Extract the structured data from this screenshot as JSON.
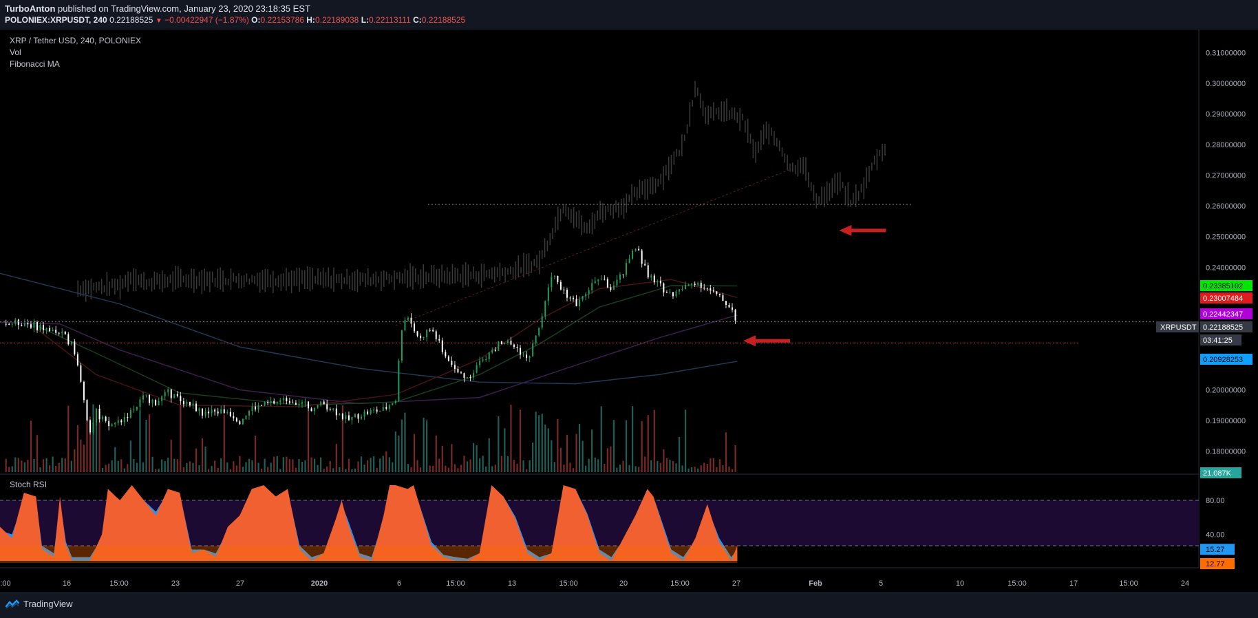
{
  "header": {
    "author": "TurboAnton",
    "published": "published on TradingView.com, January 23, 2020 23:18:35 EST",
    "symbol": "POLONIEX:XRPUSDT, 240",
    "last": "0.22188525",
    "change": "−0.00422947 (−1.87%)",
    "o_label": "O:",
    "o": "0.22153786",
    "h_label": "H:",
    "h": "0.22189038",
    "l_label": "L:",
    "l": "0.22113111",
    "c_label": "C:",
    "c": "0.22188525"
  },
  "legend": {
    "title": "XRP / Tether USD, 240, POLONIEX",
    "vol": "Vol",
    "fib": "Fibonacci MA"
  },
  "stoch": {
    "title": "Stoch RSI",
    "levels": [
      "80.00",
      "40.00"
    ],
    "value_blue": "15.27",
    "value_orange": "12.77"
  },
  "footer": {
    "brand": "TradingView"
  },
  "chart_data": {
    "type": "candlestick",
    "symbol": "XRPUSDT",
    "y_ticks": [
      "0.31000000",
      "0.30000000",
      "0.29000000",
      "0.28000000",
      "0.27000000",
      "0.26000000",
      "0.25000000",
      "0.24000000",
      "0.20000000",
      "0.19000000",
      "0.18000000"
    ],
    "ylim": [
      0.1725,
      0.3175
    ],
    "x_ticks": [
      ":00",
      "16",
      "15:00",
      "23",
      "27",
      "2020",
      "6",
      "15:00",
      "13",
      "15:00",
      "20",
      "15:00",
      "27",
      "Feb",
      "5",
      "10",
      "15:00",
      "17",
      "15:00",
      "24"
    ],
    "price_labels": [
      {
        "value": "0.23385102",
        "color": "#00e600",
        "text_color": "#000"
      },
      {
        "value": "0.23007484",
        "color": "#e01b1b",
        "text_color": "#fff"
      },
      {
        "value": "0.22442347",
        "color": "#b000d8",
        "text_color": "#fff"
      },
      {
        "value": "0.22188525",
        "color": "#363a45",
        "text_color": "#fff",
        "name": "XRPUSDT"
      },
      {
        "value": "03:41:25",
        "color": "#363a45",
        "text_color": "#fff"
      },
      {
        "value": "0.20928253",
        "color": "#0fa0ff",
        "text_color": "#000"
      },
      {
        "value": "21.087K",
        "color": "#26a69a",
        "text_color": "#fff"
      }
    ],
    "dotted_lines": [
      {
        "y": 0.2605,
        "x_start": 0.357,
        "x_end": 0.76,
        "color": "#888"
      },
      {
        "y": 0.2222,
        "x_start": 0.0,
        "x_end": 0.97,
        "color": "#777"
      },
      {
        "y": 0.2153,
        "x_start": 0.0,
        "x_end": 0.9,
        "color": "#c03030"
      }
    ],
    "price_path": [
      [
        0,
        0.2215
      ],
      [
        0.02,
        0.222
      ],
      [
        0.04,
        0.2195
      ],
      [
        0.05,
        0.2185
      ],
      [
        0.06,
        0.215
      ],
      [
        0.065,
        0.207
      ],
      [
        0.07,
        0.197
      ],
      [
        0.075,
        0.186
      ],
      [
        0.08,
        0.193
      ],
      [
        0.09,
        0.188
      ],
      [
        0.1,
        0.19
      ],
      [
        0.11,
        0.193
      ],
      [
        0.12,
        0.1975
      ],
      [
        0.13,
        0.196
      ],
      [
        0.14,
        0.199
      ],
      [
        0.15,
        0.197
      ],
      [
        0.16,
        0.195
      ],
      [
        0.17,
        0.192
      ],
      [
        0.18,
        0.193
      ],
      [
        0.19,
        0.193
      ],
      [
        0.2,
        0.19
      ],
      [
        0.21,
        0.194
      ],
      [
        0.22,
        0.195
      ],
      [
        0.23,
        0.196
      ],
      [
        0.24,
        0.197
      ],
      [
        0.25,
        0.196
      ],
      [
        0.26,
        0.194
      ],
      [
        0.27,
        0.1955
      ],
      [
        0.28,
        0.193
      ],
      [
        0.29,
        0.19
      ],
      [
        0.3,
        0.192
      ],
      [
        0.31,
        0.193
      ],
      [
        0.32,
        0.1935
      ],
      [
        0.33,
        0.197
      ],
      [
        0.335,
        0.22
      ],
      [
        0.34,
        0.225
      ],
      [
        0.345,
        0.218
      ],
      [
        0.35,
        0.217
      ],
      [
        0.36,
        0.22
      ],
      [
        0.37,
        0.212
      ],
      [
        0.38,
        0.206
      ],
      [
        0.39,
        0.204
      ],
      [
        0.4,
        0.209
      ],
      [
        0.41,
        0.213
      ],
      [
        0.42,
        0.216
      ],
      [
        0.43,
        0.214
      ],
      [
        0.44,
        0.21
      ],
      [
        0.45,
        0.22
      ],
      [
        0.455,
        0.23
      ],
      [
        0.46,
        0.238
      ],
      [
        0.47,
        0.232
      ],
      [
        0.48,
        0.228
      ],
      [
        0.49,
        0.232
      ],
      [
        0.5,
        0.237
      ],
      [
        0.51,
        0.233
      ],
      [
        0.52,
        0.238
      ],
      [
        0.53,
        0.247
      ],
      [
        0.54,
        0.238
      ],
      [
        0.55,
        0.234
      ],
      [
        0.56,
        0.231
      ],
      [
        0.57,
        0.233
      ],
      [
        0.58,
        0.2355
      ],
      [
        0.59,
        0.233
      ],
      [
        0.6,
        0.23
      ],
      [
        0.61,
        0.227
      ],
      [
        0.615,
        0.2219
      ]
    ],
    "ghost_path": [
      [
        0.065,
        0.233
      ],
      [
        0.1,
        0.234
      ],
      [
        0.11,
        0.237
      ],
      [
        0.12,
        0.235
      ],
      [
        0.15,
        0.236
      ],
      [
        0.2,
        0.236
      ],
      [
        0.25,
        0.236
      ],
      [
        0.3,
        0.236
      ],
      [
        0.33,
        0.2365
      ],
      [
        0.36,
        0.237
      ],
      [
        0.4,
        0.2375
      ],
      [
        0.43,
        0.239
      ],
      [
        0.45,
        0.242
      ],
      [
        0.47,
        0.26
      ],
      [
        0.48,
        0.256
      ],
      [
        0.49,
        0.252
      ],
      [
        0.5,
        0.258
      ],
      [
        0.52,
        0.26
      ],
      [
        0.53,
        0.264
      ],
      [
        0.55,
        0.268
      ],
      [
        0.57,
        0.28
      ],
      [
        0.58,
        0.299
      ],
      [
        0.59,
        0.289
      ],
      [
        0.6,
        0.291
      ],
      [
        0.61,
        0.29
      ],
      [
        0.62,
        0.288
      ],
      [
        0.63,
        0.277
      ],
      [
        0.64,
        0.285
      ],
      [
        0.65,
        0.28
      ],
      [
        0.66,
        0.272
      ],
      [
        0.67,
        0.274
      ],
      [
        0.68,
        0.262
      ],
      [
        0.69,
        0.264
      ],
      [
        0.7,
        0.268
      ],
      [
        0.71,
        0.261
      ],
      [
        0.72,
        0.266
      ],
      [
        0.73,
        0.275
      ],
      [
        0.74,
        0.28
      ]
    ],
    "ma_lines": [
      {
        "color": "#1e3a52",
        "points": [
          [
            0,
            0.238
          ],
          [
            0.1,
            0.228
          ],
          [
            0.2,
            0.214
          ],
          [
            0.3,
            0.207
          ],
          [
            0.4,
            0.2025
          ],
          [
            0.48,
            0.202
          ],
          [
            0.55,
            0.205
          ],
          [
            0.615,
            0.2093
          ]
        ]
      },
      {
        "color": "#3d1f4f",
        "points": [
          [
            0,
            0.222
          ],
          [
            0.05,
            0.2215
          ],
          [
            0.1,
            0.213
          ],
          [
            0.2,
            0.2
          ],
          [
            0.3,
            0.1955
          ],
          [
            0.4,
            0.1975
          ],
          [
            0.48,
            0.208
          ],
          [
            0.55,
            0.217
          ],
          [
            0.615,
            0.2244
          ]
        ]
      },
      {
        "color": "#173f1f",
        "points": [
          [
            0.03,
            0.221
          ],
          [
            0.08,
            0.212
          ],
          [
            0.15,
            0.199
          ],
          [
            0.25,
            0.195
          ],
          [
            0.33,
            0.196
          ],
          [
            0.4,
            0.205
          ],
          [
            0.45,
            0.215
          ],
          [
            0.5,
            0.227
          ],
          [
            0.56,
            0.234
          ],
          [
            0.615,
            0.2339
          ]
        ]
      },
      {
        "color": "#4a1414",
        "points": [
          [
            0.03,
            0.22
          ],
          [
            0.08,
            0.205
          ],
          [
            0.15,
            0.195
          ],
          [
            0.25,
            0.1945
          ],
          [
            0.33,
            0.1985
          ],
          [
            0.4,
            0.21
          ],
          [
            0.45,
            0.223
          ],
          [
            0.5,
            0.233
          ],
          [
            0.56,
            0.236
          ],
          [
            0.615,
            0.2301
          ]
        ]
      }
    ],
    "ghost_trend": [
      [
        0.33,
        0.221
      ],
      [
        0.66,
        0.272
      ]
    ],
    "arrows": [
      {
        "x": 0.7,
        "y": 0.252,
        "direction": "left",
        "color": "#c8201e"
      },
      {
        "x": 0.62,
        "y": 0.216,
        "direction": "left",
        "color": "#c8201e"
      }
    ],
    "stoch_ylim": [
      0,
      100
    ],
    "stoch_k": [
      [
        0,
        45
      ],
      [
        0.01,
        30
      ],
      [
        0.02,
        90
      ],
      [
        0.03,
        85
      ],
      [
        0.035,
        15
      ],
      [
        0.045,
        5
      ],
      [
        0.05,
        85
      ],
      [
        0.055,
        20
      ],
      [
        0.06,
        0
      ],
      [
        0.075,
        0
      ],
      [
        0.085,
        35
      ],
      [
        0.09,
        95
      ],
      [
        0.1,
        80
      ],
      [
        0.11,
        100
      ],
      [
        0.12,
        80
      ],
      [
        0.13,
        60
      ],
      [
        0.14,
        95
      ],
      [
        0.15,
        90
      ],
      [
        0.16,
        10
      ],
      [
        0.17,
        15
      ],
      [
        0.18,
        5
      ],
      [
        0.19,
        45
      ],
      [
        0.2,
        60
      ],
      [
        0.21,
        95
      ],
      [
        0.22,
        100
      ],
      [
        0.23,
        85
      ],
      [
        0.24,
        95
      ],
      [
        0.25,
        15
      ],
      [
        0.26,
        0
      ],
      [
        0.27,
        10
      ],
      [
        0.28,
        55
      ],
      [
        0.285,
        80
      ],
      [
        0.29,
        50
      ],
      [
        0.3,
        5
      ],
      [
        0.31,
        0
      ],
      [
        0.32,
        60
      ],
      [
        0.325,
        100
      ],
      [
        0.33,
        100
      ],
      [
        0.34,
        95
      ],
      [
        0.345,
        100
      ],
      [
        0.36,
        20
      ],
      [
        0.37,
        5
      ],
      [
        0.38,
        0
      ],
      [
        0.39,
        0
      ],
      [
        0.4,
        10
      ],
      [
        0.41,
        100
      ],
      [
        0.42,
        85
      ],
      [
        0.43,
        55
      ],
      [
        0.44,
        10
      ],
      [
        0.45,
        0
      ],
      [
        0.46,
        10
      ],
      [
        0.47,
        100
      ],
      [
        0.48,
        95
      ],
      [
        0.49,
        60
      ],
      [
        0.5,
        10
      ],
      [
        0.51,
        0
      ],
      [
        0.52,
        30
      ],
      [
        0.53,
        60
      ],
      [
        0.54,
        95
      ],
      [
        0.545,
        85
      ],
      [
        0.55,
        60
      ],
      [
        0.56,
        10
      ],
      [
        0.57,
        0
      ],
      [
        0.58,
        30
      ],
      [
        0.59,
        75
      ],
      [
        0.6,
        25
      ],
      [
        0.61,
        0
      ],
      [
        0.615,
        20
      ]
    ],
    "stoch_d": [
      [
        0,
        40
      ],
      [
        0.01,
        35
      ],
      [
        0.02,
        80
      ],
      [
        0.03,
        80
      ],
      [
        0.035,
        20
      ],
      [
        0.045,
        10
      ],
      [
        0.05,
        80
      ],
      [
        0.055,
        25
      ],
      [
        0.06,
        5
      ],
      [
        0.075,
        5
      ],
      [
        0.085,
        30
      ],
      [
        0.09,
        88
      ],
      [
        0.1,
        80
      ],
      [
        0.11,
        95
      ],
      [
        0.12,
        80
      ],
      [
        0.13,
        65
      ],
      [
        0.14,
        90
      ],
      [
        0.15,
        88
      ],
      [
        0.16,
        15
      ],
      [
        0.17,
        15
      ],
      [
        0.18,
        10
      ],
      [
        0.19,
        40
      ],
      [
        0.2,
        58
      ],
      [
        0.21,
        90
      ],
      [
        0.22,
        98
      ],
      [
        0.23,
        85
      ],
      [
        0.24,
        92
      ],
      [
        0.25,
        20
      ],
      [
        0.26,
        5
      ],
      [
        0.27,
        10
      ],
      [
        0.28,
        50
      ],
      [
        0.285,
        75
      ],
      [
        0.29,
        55
      ],
      [
        0.3,
        10
      ],
      [
        0.31,
        5
      ],
      [
        0.32,
        55
      ],
      [
        0.325,
        95
      ],
      [
        0.33,
        98
      ],
      [
        0.34,
        95
      ],
      [
        0.345,
        98
      ],
      [
        0.36,
        25
      ],
      [
        0.37,
        8
      ],
      [
        0.38,
        5
      ],
      [
        0.39,
        3
      ],
      [
        0.4,
        10
      ],
      [
        0.41,
        95
      ],
      [
        0.42,
        85
      ],
      [
        0.43,
        58
      ],
      [
        0.44,
        15
      ],
      [
        0.45,
        5
      ],
      [
        0.46,
        10
      ],
      [
        0.47,
        95
      ],
      [
        0.48,
        95
      ],
      [
        0.49,
        62
      ],
      [
        0.5,
        15
      ],
      [
        0.51,
        5
      ],
      [
        0.52,
        28
      ],
      [
        0.53,
        58
      ],
      [
        0.54,
        90
      ],
      [
        0.545,
        85
      ],
      [
        0.55,
        62
      ],
      [
        0.56,
        15
      ],
      [
        0.57,
        5
      ],
      [
        0.58,
        28
      ],
      [
        0.59,
        70
      ],
      [
        0.6,
        30
      ],
      [
        0.61,
        5
      ],
      [
        0.615,
        15
      ]
    ]
  }
}
